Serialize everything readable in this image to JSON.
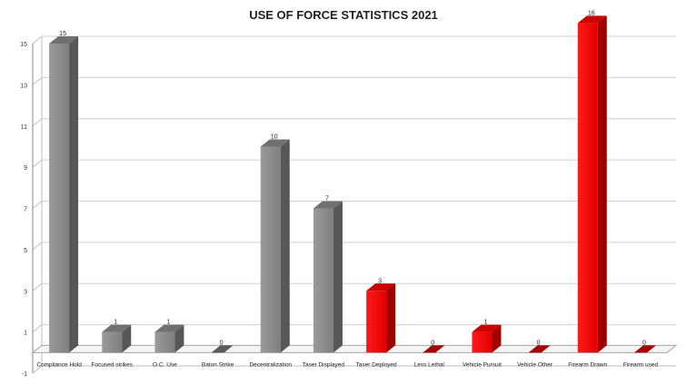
{
  "chart_data": {
    "type": "bar",
    "title": "USE OF FORCE STATISTICS 2021",
    "xlabel": "",
    "ylabel": "",
    "categories": [
      "Compliance Hold",
      "Focused   strikes",
      "O.C. Use",
      "Baton Strike",
      "Decentralization",
      "Taser Displayed",
      "Taser Deployed",
      "Less Lethal",
      "Vehicle Pursuit",
      "Vehicle Other",
      "Firearm Drawn",
      "Firearm used"
    ],
    "values": [
      15,
      1,
      1,
      0,
      10,
      7,
      3,
      0,
      1,
      0,
      16,
      0
    ],
    "data_labels": [
      "15",
      "1",
      "1",
      "0",
      "10",
      "7",
      "3",
      "0",
      "1",
      "0",
      "16",
      "0"
    ],
    "bar_colors": [
      "#8c8c8c",
      "#8c8c8c",
      "#8c8c8c",
      "#8c8c8c",
      "#8c8c8c",
      "#8c8c8c",
      "#ff0000",
      "#ff0000",
      "#ff0000",
      "#ff0000",
      "#ff0000",
      "#ff0000"
    ],
    "yticks": [
      -1,
      1,
      3,
      5,
      7,
      9,
      11,
      13,
      15
    ],
    "ylim": [
      -1,
      15
    ],
    "grid": true,
    "legend": "none",
    "style": "3d-column"
  }
}
